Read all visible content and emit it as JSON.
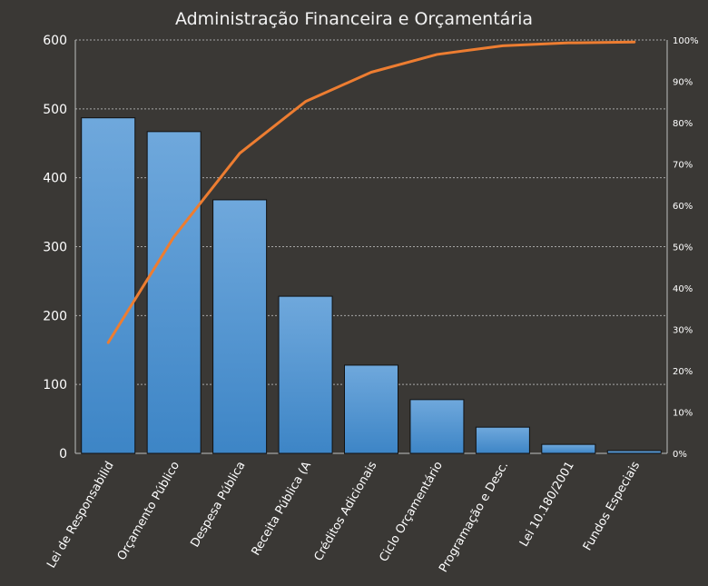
{
  "chart_data": {
    "type": "bar",
    "title": "Administração Financeira e Orçamentária",
    "categories": [
      "Lei de Responsabilid",
      "Orçamento Público",
      "Despesa Pública",
      "Receita Pública (A",
      "Créditos Adicionais",
      "Ciclo Orçamentário",
      "Programação e Desc.",
      "Lei 10.180/2001",
      "Fundos Especiais"
    ],
    "series": [
      {
        "type": "bar",
        "values": [
          487,
          467,
          368,
          228,
          128,
          78,
          38,
          13,
          4
        ],
        "color": "#5b9bd5",
        "axis": "left"
      },
      {
        "type": "line",
        "values": [
          26.8,
          52.4,
          72.6,
          85.1,
          92.2,
          96.5,
          98.6,
          99.3,
          99.5
        ],
        "color": "#ed7d31",
        "axis": "right"
      }
    ],
    "y_left": {
      "min": 0,
      "max": 600,
      "ticks": [
        0,
        100,
        200,
        300,
        400,
        500,
        600
      ]
    },
    "y_right": {
      "min": 0,
      "max": 100,
      "ticks": [
        "0%",
        "10%",
        "20%",
        "30%",
        "40%",
        "50%",
        "60%",
        "70%",
        "80%",
        "90%",
        "100%"
      ]
    },
    "gridlines": "horizontal dotted",
    "legend": "none",
    "xlabel": "",
    "ylabel": ""
  }
}
